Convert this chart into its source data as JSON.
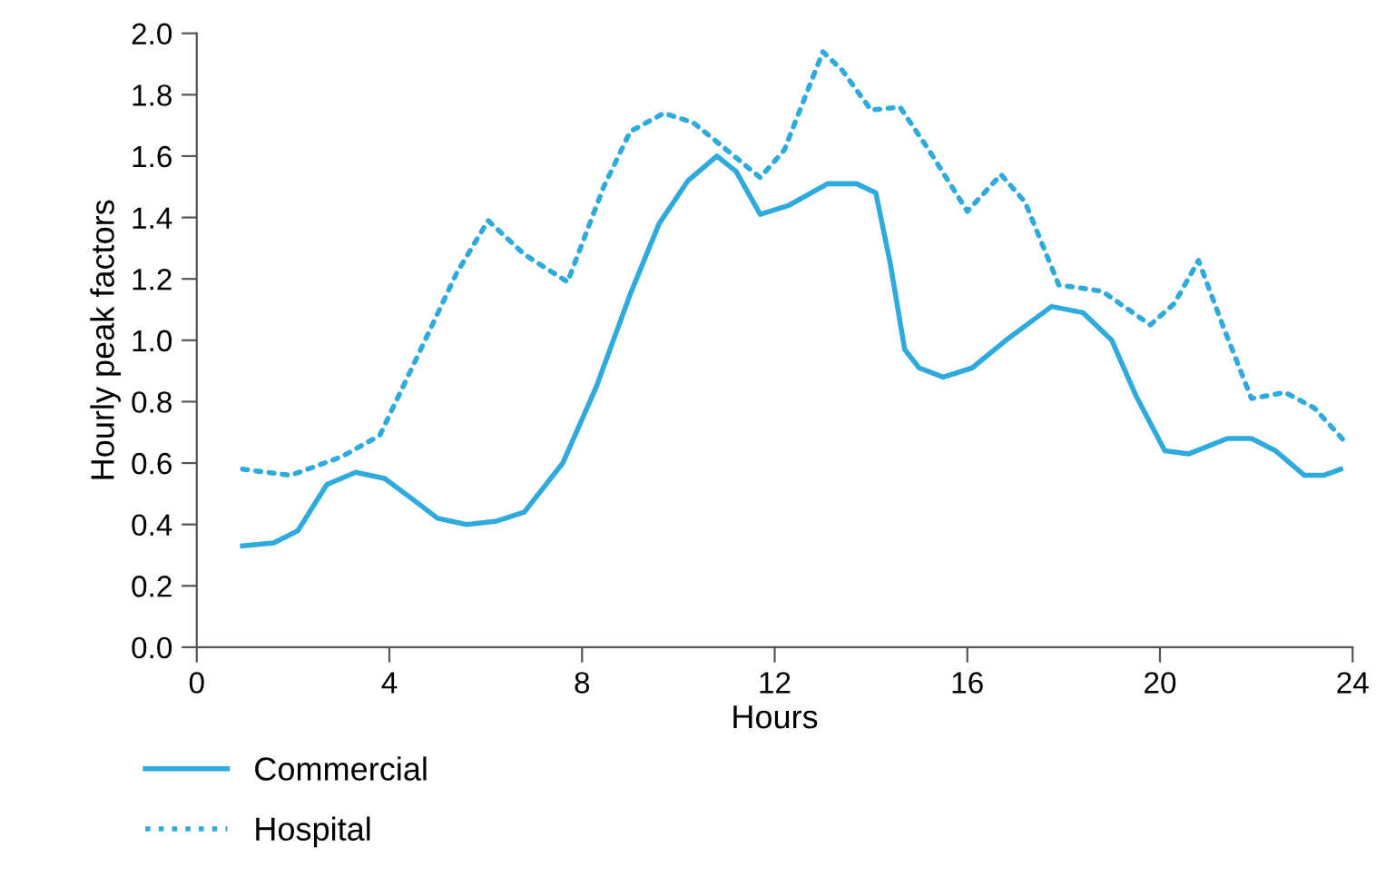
{
  "chart_data": {
    "type": "line",
    "xlabel": "Hours",
    "ylabel": "Hourly peak factors",
    "xlim": [
      0,
      24
    ],
    "xticks": [
      0,
      4,
      8,
      12,
      16,
      20,
      24
    ],
    "ylim": [
      0,
      2.0
    ],
    "yticks": [
      {
        "value": 0,
        "label": "0.0"
      },
      0.2,
      0.4,
      0.6,
      0.8,
      {
        "value": 1.0,
        "label": "1.0"
      },
      1.2,
      1.4,
      1.6,
      1.8,
      {
        "value": 2.0,
        "label": "2.0"
      }
    ],
    "grid": false,
    "legend": "bottom left",
    "marker": "none",
    "series": [
      {
        "name": "Commercial",
        "color": "#2eaadc",
        "line_style": "solid",
        "x": [
          0.95,
          1.6,
          2.1,
          2.7,
          3.3,
          3.9,
          4.5,
          5.0,
          5.6,
          6.2,
          6.8,
          7.6,
          8.3,
          9.0,
          9.6,
          10.2,
          10.8,
          11.2,
          11.7,
          12.3,
          13.1,
          13.7,
          14.1,
          14.4,
          14.7,
          15.0,
          15.5,
          16.1,
          16.8,
          17.75,
          18.4,
          19.0,
          19.5,
          20.1,
          20.6,
          21.4,
          21.9,
          22.4,
          23.0,
          23.4,
          23.75
        ],
        "values": [
          0.33,
          0.34,
          0.38,
          0.53,
          0.57,
          0.55,
          0.48,
          0.42,
          0.4,
          0.41,
          0.44,
          0.6,
          0.85,
          1.15,
          1.38,
          1.52,
          1.6,
          1.55,
          1.41,
          1.44,
          1.51,
          1.51,
          1.48,
          1.25,
          0.97,
          0.91,
          0.88,
          0.91,
          1.0,
          1.11,
          1.09,
          1.0,
          0.82,
          0.64,
          0.63,
          0.68,
          0.68,
          0.64,
          0.56,
          0.56,
          0.58
        ]
      },
      {
        "name": "Hospital",
        "color": "#2eaadc",
        "line_style": "dotted",
        "x": [
          0.95,
          1.95,
          3.0,
          3.8,
          4.65,
          5.4,
          6.05,
          6.8,
          7.7,
          8.45,
          9.0,
          9.7,
          10.3,
          10.85,
          11.7,
          12.2,
          13.0,
          13.4,
          14.0,
          14.6,
          15.2,
          16.0,
          16.7,
          17.2,
          17.9,
          18.8,
          19.8,
          20.3,
          20.8,
          21.3,
          21.9,
          22.6,
          23.2,
          23.9
        ],
        "values": [
          0.58,
          0.56,
          0.62,
          0.69,
          0.97,
          1.22,
          1.39,
          1.28,
          1.19,
          1.5,
          1.68,
          1.74,
          1.71,
          1.64,
          1.53,
          1.62,
          1.94,
          1.88,
          1.75,
          1.76,
          1.62,
          1.42,
          1.54,
          1.45,
          1.18,
          1.16,
          1.05,
          1.12,
          1.26,
          1.05,
          0.81,
          0.83,
          0.78,
          0.66
        ]
      }
    ]
  }
}
